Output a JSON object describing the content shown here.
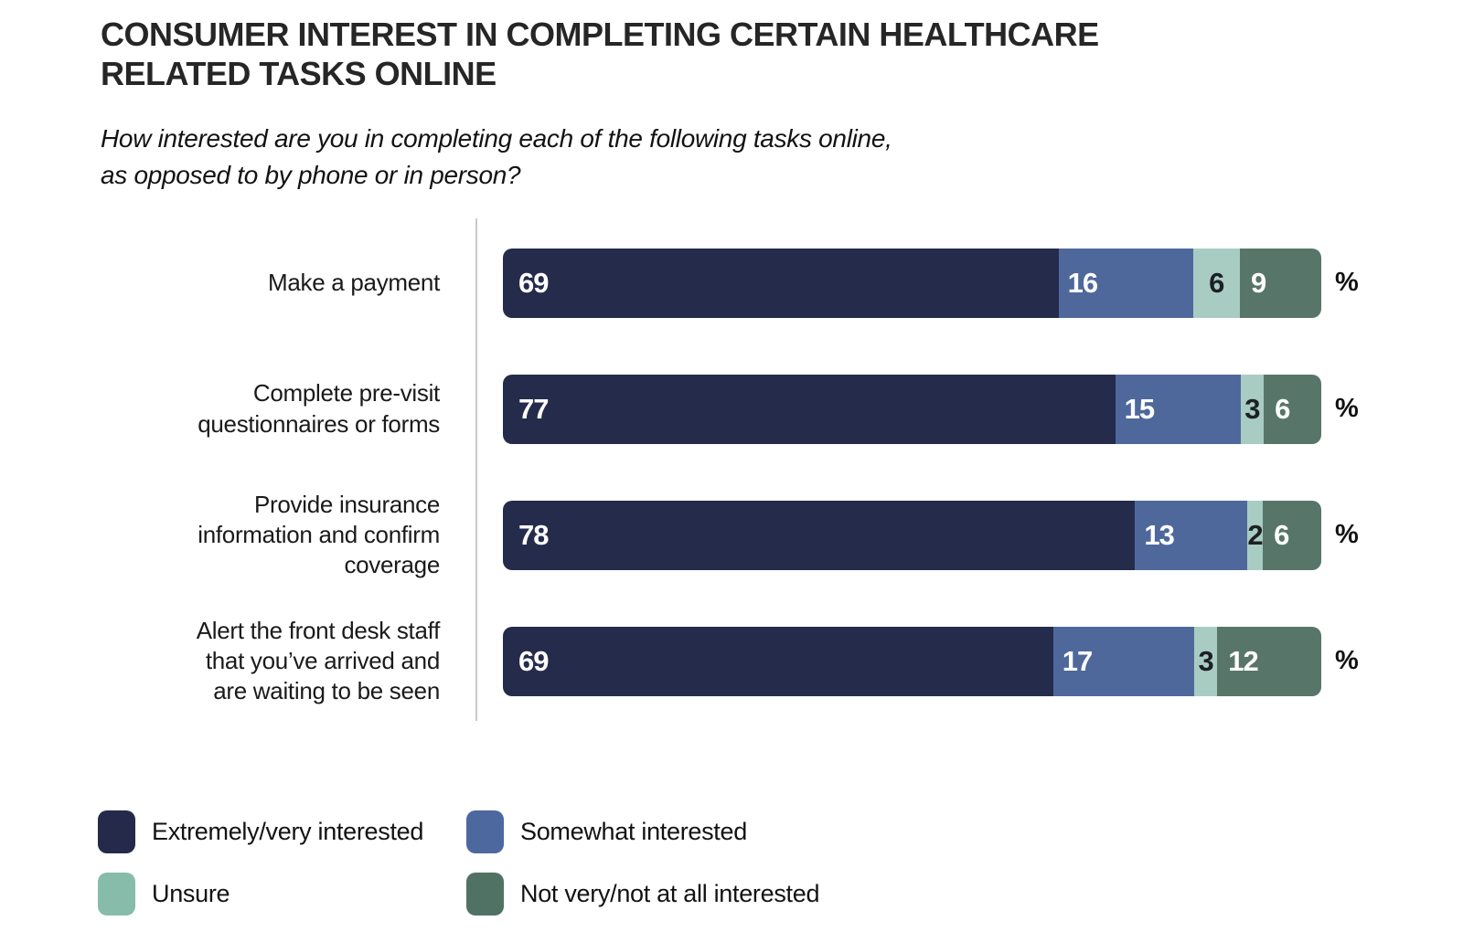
{
  "header": {
    "title_lines": [
      "CONSUMER INTEREST IN COMPLETING CERTAIN HEALTHCARE",
      "RELATED TASKS ONLINE"
    ],
    "subtitle_lines": [
      "How interested are you in completing each of the following tasks online,",
      "as opposed to by phone or in person?"
    ]
  },
  "colors": {
    "background": "#ffffff",
    "axis_line": "#c9c9c9",
    "title_text": "#262626",
    "label_text": "#1a1a1a"
  },
  "chart_data": {
    "type": "bar",
    "orientation": "horizontal",
    "stacked": true,
    "unit": "%",
    "grid": false,
    "legend_position": "bottom",
    "categories": [
      "Make a payment",
      "Complete pre-visit questionnaires or forms",
      "Provide insurance information and confirm coverage",
      "Alert the front desk staff that you’ve arrived and are waiting to be seen"
    ],
    "categories_display": [
      [
        "Make a payment"
      ],
      [
        "Complete pre-visit",
        "questionnaires or forms"
      ],
      [
        "Provide insurance",
        "information and confirm",
        "coverage"
      ],
      [
        "Alert the front desk staff",
        "that you’ve arrived and",
        "are waiting to be seen"
      ]
    ],
    "series": [
      {
        "key": "extremely-very-interested",
        "name": "Extremely/very interested",
        "color": "#252b4b",
        "legend_color": "#252a4a",
        "label_color": "#ffffff",
        "values": [
          69,
          77,
          78,
          69
        ]
      },
      {
        "key": "somewhat-interested",
        "name": "Somewhat interested",
        "color": "#4e689b",
        "legend_color": "#4d689e",
        "label_color": "#ffffff",
        "values": [
          16,
          15,
          13,
          17
        ]
      },
      {
        "key": "unsure",
        "name": "Unsure",
        "color": "#a9ccc2",
        "legend_color": "#87bcab",
        "label_color": "#1c2024",
        "values": [
          6,
          3,
          2,
          3
        ]
      },
      {
        "key": "not-very-not-at-all-interested",
        "name": "Not very/not at all interested",
        "color": "#577669",
        "legend_color": "#507265",
        "label_color": "#ffffff",
        "values": [
          9,
          6,
          6,
          12
        ]
      }
    ]
  }
}
